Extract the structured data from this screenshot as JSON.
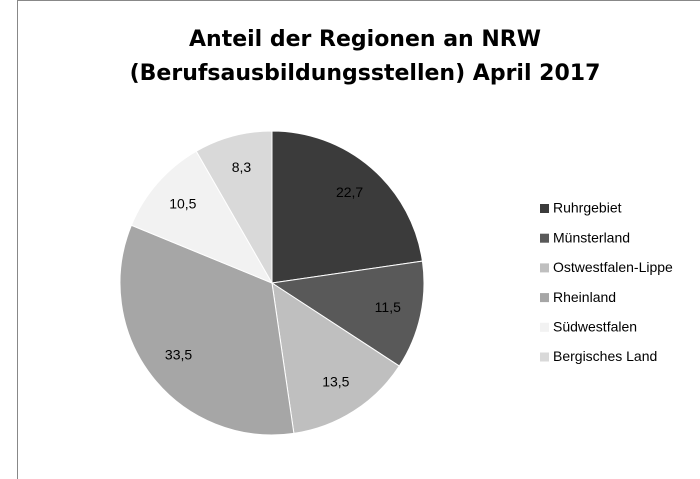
{
  "chart_data": {
    "type": "pie",
    "title": [
      "Anteil der Regionen an NRW",
      "(Berufsausbildungsstellen) April 2017"
    ],
    "categories": [
      "Ruhrgebiet",
      "Münsterland",
      "Ostwestfalen-Lippe",
      "Rheinland",
      "Südwestfalen",
      "Bergisches Land"
    ],
    "values": [
      22.7,
      11.5,
      13.5,
      33.5,
      10.5,
      8.3
    ],
    "value_labels": [
      "22,7",
      "11,5",
      "13,5",
      "33,5",
      "10,5",
      "8,3"
    ],
    "colors": [
      "#3b3b3b",
      "#595959",
      "#bfbfbf",
      "#a6a6a6",
      "#f2f2f2",
      "#d9d9d9"
    ],
    "legend": "right"
  }
}
